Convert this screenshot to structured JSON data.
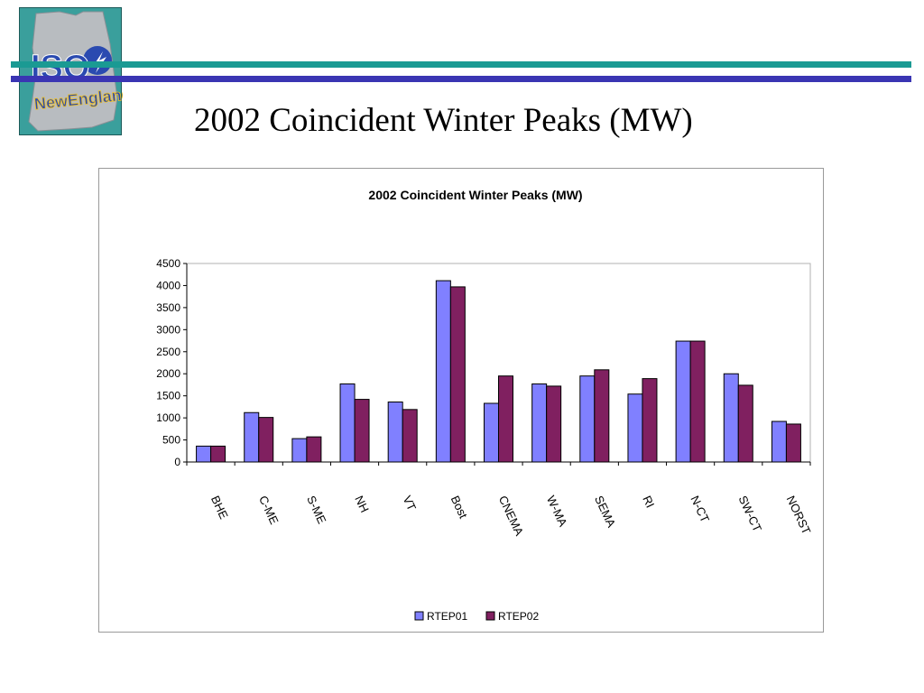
{
  "slide": {
    "title": "2002 Coincident Winter Peaks (MW)",
    "logo_text_top": "ISO",
    "logo_text_bottom": "NewEngland"
  },
  "colors": {
    "rule_teal": "#1a9a93",
    "rule_blue": "#3a35b3",
    "logo_bg": "#3a9f9c"
  },
  "chart_data": {
    "type": "bar",
    "title": "2002 Coincident Winter Peaks (MW)",
    "xlabel": "",
    "ylabel": "",
    "ylim": [
      0,
      4500
    ],
    "yticks": [
      0,
      500,
      1000,
      1500,
      2000,
      2500,
      3000,
      3500,
      4000,
      4500
    ],
    "categories": [
      "BHE",
      "C-ME",
      "S-ME",
      "NH",
      "VT",
      "Bost",
      "CNEMA",
      "W-MA",
      "SEMA",
      "RI",
      "N-CT",
      "SW-CT",
      "NORST"
    ],
    "series": [
      {
        "name": "RTEP01",
        "color": "#8080ff",
        "values": [
          360,
          1120,
          530,
          1770,
          1360,
          4110,
          1330,
          1770,
          1950,
          1540,
          2740,
          2000,
          920
        ]
      },
      {
        "name": "RTEP02",
        "color": "#802060",
        "values": [
          360,
          1010,
          570,
          1420,
          1190,
          3970,
          1950,
          1720,
          2090,
          1890,
          2740,
          1740,
          860
        ]
      }
    ],
    "grid": false,
    "legend_position": "bottom"
  }
}
